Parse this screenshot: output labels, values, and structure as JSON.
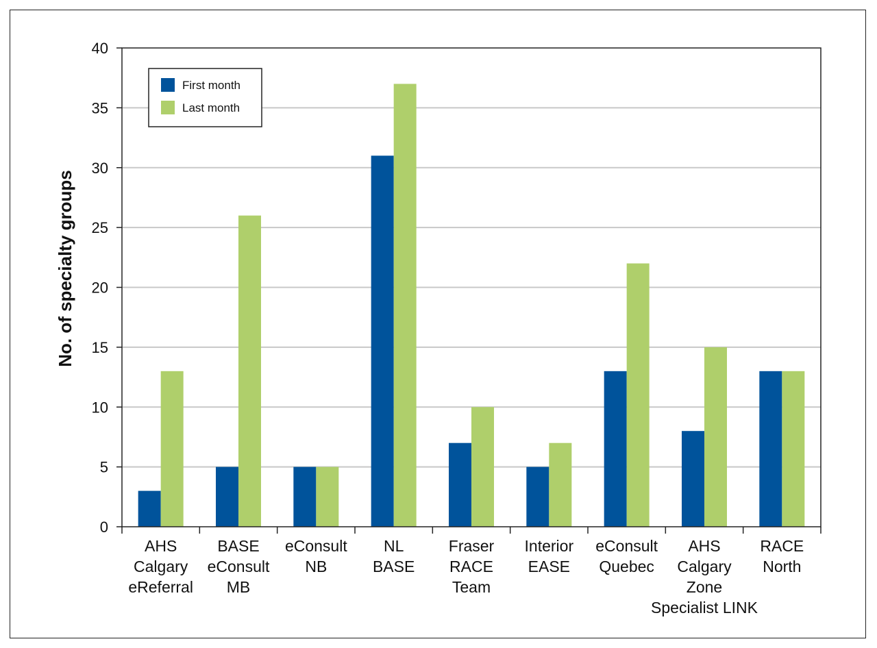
{
  "chart_data": {
    "type": "bar",
    "ylabel": "No. of specialty groups",
    "xlabel": "",
    "ylim": [
      0,
      40
    ],
    "yticks": [
      0,
      5,
      10,
      15,
      20,
      25,
      30,
      35,
      40
    ],
    "grid": "horizontal",
    "legend_position": "top-left",
    "categories": [
      [
        "AHS",
        "Calgary",
        "eReferral"
      ],
      [
        "BASE",
        "eConsult",
        "MB"
      ],
      [
        "eConsult",
        "NB"
      ],
      [
        "NL",
        "BASE"
      ],
      [
        "Fraser",
        "RACE",
        "Team"
      ],
      [
        "Interior",
        "EASE"
      ],
      [
        "eConsult",
        "Quebec"
      ],
      [
        "AHS",
        "Calgary",
        "Zone",
        "Specialist LINK"
      ],
      [
        "RACE",
        "North"
      ]
    ],
    "series": [
      {
        "name": "First month",
        "color": "#00539b",
        "values": [
          3,
          5,
          5,
          31,
          7,
          5,
          13,
          8,
          13
        ]
      },
      {
        "name": "Last month",
        "color": "#afcf6b",
        "values": [
          13,
          26,
          5,
          37,
          10,
          7,
          22,
          15,
          13
        ]
      }
    ]
  }
}
